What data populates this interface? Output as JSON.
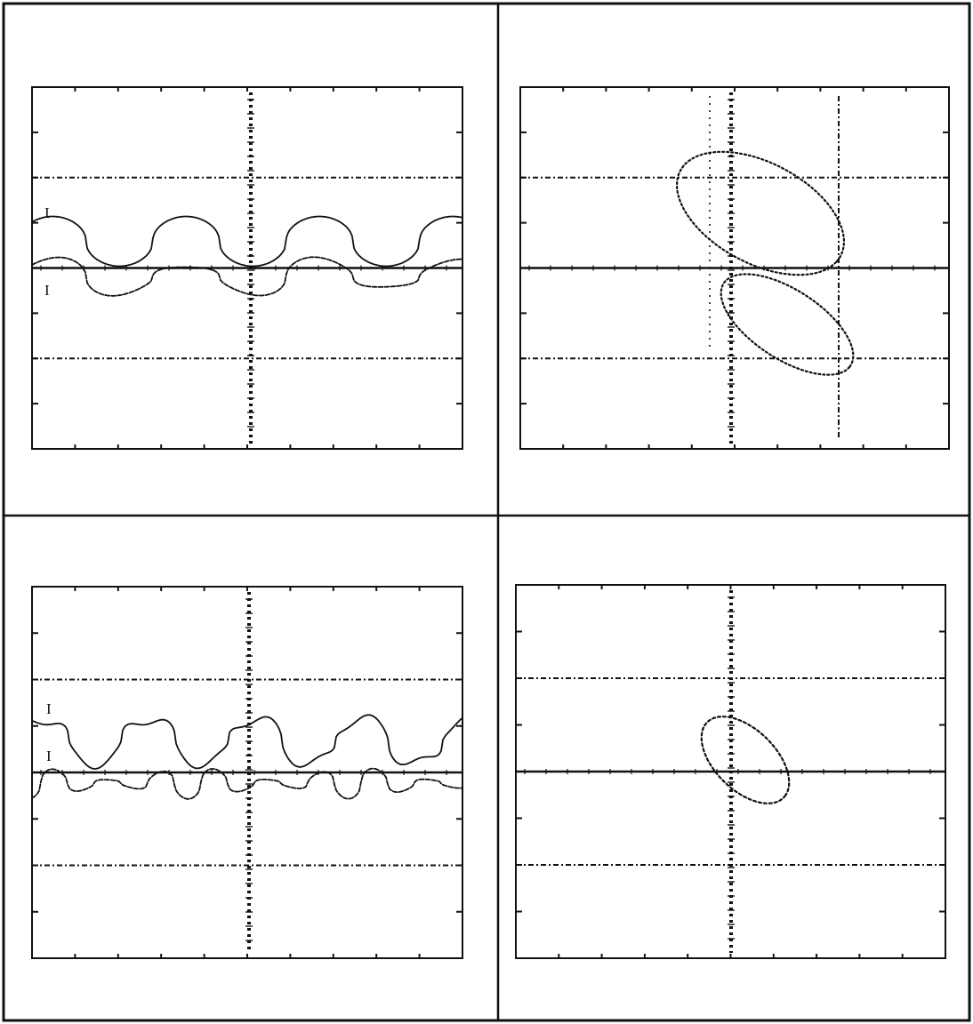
{
  "page": {
    "panels": [
      {
        "id": "top-left",
        "kind": "waveform",
        "trace_labels": [
          "I",
          "I"
        ]
      },
      {
        "id": "top-right",
        "kind": "phase-portrait",
        "trace_labels": []
      },
      {
        "id": "bottom-left",
        "kind": "waveform",
        "trace_labels": [
          "I",
          "I"
        ]
      },
      {
        "id": "bottom-right",
        "kind": "phase-portrait",
        "trace_labels": []
      }
    ]
  },
  "style": {
    "ink": "#111111",
    "paper": "#ffffff"
  }
}
